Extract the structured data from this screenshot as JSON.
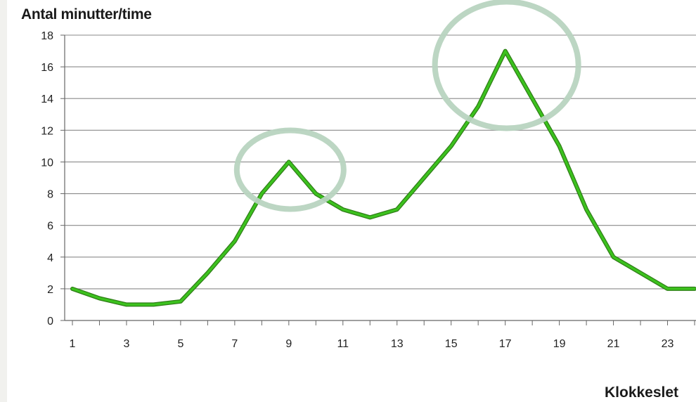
{
  "chart_data": {
    "type": "line",
    "ylabel": "Antal minutter/time",
    "xlabel": "Klokkeslet",
    "x": [
      1,
      2,
      3,
      4,
      5,
      6,
      7,
      8,
      9,
      10,
      11,
      12,
      13,
      14,
      15,
      16,
      17,
      18,
      19,
      20,
      21,
      22,
      23,
      24
    ],
    "series": [
      {
        "values": [
          2,
          1.4,
          1,
          1,
          1.2,
          3,
          5,
          8,
          10,
          8,
          7,
          6.5,
          7,
          9,
          11,
          13.5,
          17,
          14,
          11,
          7,
          4,
          3,
          2,
          2
        ]
      }
    ],
    "xticks": [
      1,
      3,
      5,
      7,
      9,
      11,
      13,
      15,
      17,
      19,
      21,
      23
    ],
    "yticks": [
      0,
      2,
      4,
      6,
      8,
      10,
      12,
      14,
      16,
      18
    ],
    "ylim": [
      0,
      18
    ],
    "xlim": [
      1,
      24
    ],
    "grid": true,
    "line_color": "#3cc21e",
    "highlight_color": "#b8d4c0",
    "highlights": [
      {
        "x": 9,
        "y": 10,
        "label": "peak-morning"
      },
      {
        "x": 17,
        "y": 17,
        "label": "peak-evening"
      }
    ]
  }
}
